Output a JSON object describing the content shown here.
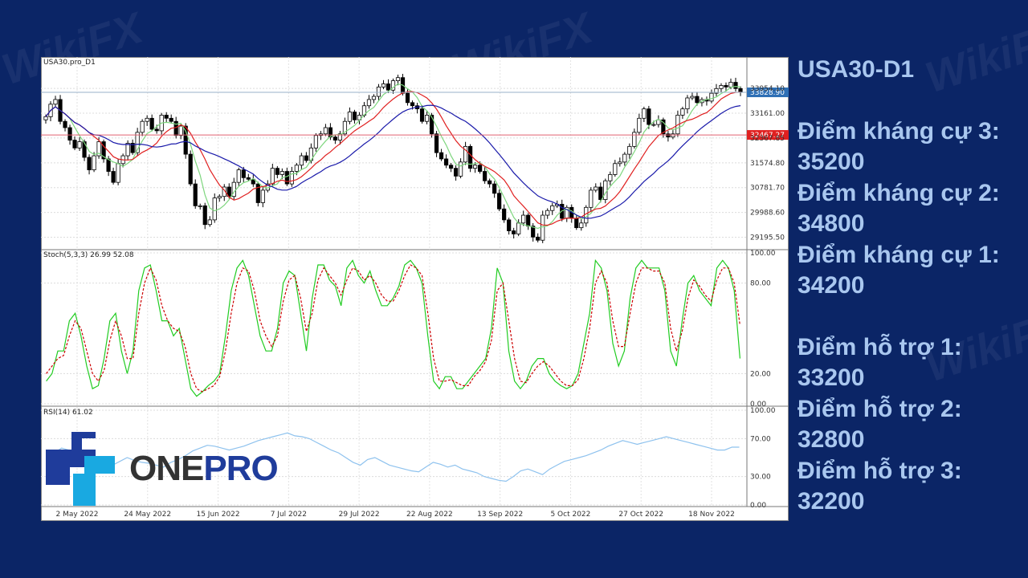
{
  "chart_data": [
    {
      "type": "candlestick",
      "title": "USA30.pro_D1",
      "x_tick_labels": [
        "2 May 2022",
        "24 May 2022",
        "15 Jun 2022",
        "7 Jul 2022",
        "29 Jul 2022",
        "22 Aug 2022",
        "13 Sep 2022",
        "5 Oct 2022",
        "27 Oct 2022",
        "18 Nov 2022"
      ],
      "y_tick_labels": [
        "33954.10",
        "33161.00",
        "32367.85",
        "31574.80",
        "30781.70",
        "29988.60",
        "29195.50"
      ],
      "ylim": [
        28900,
        34600
      ],
      "last_price": "33828.90",
      "horizontal_line": "32467.27",
      "colors": {
        "fast_ma": "#7ed67e",
        "mid_ma": "#e02020",
        "slow_ma": "#1a1aaa",
        "up_candle": "#ffffff",
        "down_candle": "#000000"
      },
      "close": [
        33050,
        33450,
        33600,
        32900,
        32700,
        32300,
        32050,
        32250,
        31750,
        31350,
        31800,
        32250,
        31700,
        31300,
        30950,
        31550,
        31800,
        32200,
        31900,
        32550,
        32900,
        33000,
        32650,
        32600,
        33100,
        33000,
        32900,
        32450,
        32750,
        31850,
        30900,
        30200,
        30200,
        29600,
        29750,
        30450,
        30500,
        30800,
        30500,
        30950,
        31350,
        31100,
        31050,
        30900,
        30300,
        30700,
        30900,
        31400,
        31200,
        31300,
        30900,
        31300,
        31500,
        31800,
        31650,
        32050,
        32450,
        32500,
        32700,
        32400,
        32300,
        32500,
        32900,
        33200,
        32950,
        33100,
        33400,
        33600,
        33700,
        34000,
        34100,
        33900,
        34200,
        34300,
        33800,
        33500,
        33400,
        33300,
        32900,
        33100,
        32500,
        31900,
        31700,
        31500,
        31400,
        31150,
        31600,
        32100,
        31400,
        31500,
        31300,
        31000,
        30900,
        30600,
        30100,
        29750,
        29400,
        29300,
        29650,
        29900,
        29550,
        29200,
        29100,
        29900,
        30050,
        30200,
        30250,
        29800,
        30150,
        29800,
        29500,
        29650,
        30150,
        30700,
        30800,
        30400,
        31000,
        31200,
        31550,
        31600,
        31850,
        32100,
        32550,
        33000,
        33300,
        32800,
        32800,
        32950,
        32500,
        32400,
        32500,
        33100,
        33300,
        33650,
        33700,
        33500,
        33600,
        33550,
        33800,
        33950,
        34050,
        34000,
        34150,
        33950,
        33828.9
      ]
    },
    {
      "type": "line",
      "title": "Stoch(5,3,3) 26.99 52.08",
      "y_tick_labels": [
        "100.00",
        "80.00",
        "20.00",
        "0.00"
      ],
      "ylim": [
        0,
        100
      ],
      "series": [
        {
          "color": "#22cc22",
          "values": [
            15,
            20,
            35,
            35,
            55,
            60,
            45,
            25,
            10,
            12,
            30,
            55,
            60,
            35,
            20,
            35,
            75,
            90,
            92,
            75,
            55,
            55,
            45,
            50,
            30,
            10,
            5,
            8,
            12,
            15,
            20,
            45,
            75,
            90,
            95,
            85,
            65,
            45,
            35,
            35,
            50,
            80,
            88,
            85,
            60,
            35,
            70,
            92,
            92,
            82,
            78,
            65,
            90,
            95,
            85,
            80,
            88,
            75,
            65,
            65,
            70,
            78,
            92,
            95,
            90,
            80,
            45,
            15,
            10,
            18,
            18,
            10,
            10,
            15,
            20,
            25,
            30,
            50,
            90,
            80,
            35,
            15,
            10,
            15,
            25,
            30,
            30,
            20,
            15,
            12,
            10,
            12,
            20,
            40,
            60,
            95,
            90,
            75,
            40,
            25,
            35,
            70,
            90,
            95,
            90,
            90,
            90,
            75,
            35,
            25,
            55,
            80,
            85,
            75,
            70,
            65,
            90,
            95,
            90,
            75,
            30
          ]
        },
        {
          "color": "#cc0000",
          "values": [
            20,
            25,
            30,
            32,
            45,
            55,
            50,
            35,
            20,
            15,
            22,
            42,
            55,
            45,
            30,
            30,
            60,
            80,
            90,
            82,
            65,
            55,
            50,
            48,
            38,
            20,
            10,
            8,
            10,
            12,
            18,
            35,
            60,
            80,
            90,
            88,
            75,
            55,
            45,
            38,
            45,
            68,
            82,
            85,
            70,
            48,
            60,
            82,
            90,
            85,
            80,
            72,
            82,
            90,
            88,
            82,
            85,
            80,
            72,
            68,
            68,
            75,
            85,
            92,
            90,
            85,
            60,
            30,
            15,
            15,
            16,
            14,
            12,
            12,
            18,
            22,
            28,
            42,
            75,
            80,
            55,
            30,
            15,
            14,
            20,
            25,
            28,
            25,
            20,
            15,
            12,
            12,
            16,
            30,
            50,
            80,
            88,
            80,
            55,
            38,
            38,
            60,
            80,
            90,
            90,
            88,
            88,
            80,
            50,
            35,
            48,
            70,
            82,
            78,
            72,
            68,
            82,
            90,
            90,
            80,
            52
          ]
        }
      ]
    },
    {
      "type": "line",
      "title": "RSI(14) 61.02",
      "y_tick_labels": [
        "100.00",
        "70.00",
        "30.00",
        "0.00"
      ],
      "ylim": [
        0,
        100
      ],
      "series": [
        {
          "color": "#8ec2ee",
          "values": [
            52,
            55,
            60,
            58,
            50,
            45,
            48,
            44,
            40,
            42,
            46,
            50,
            47,
            45,
            44,
            42,
            40,
            45,
            48,
            52,
            57,
            60,
            63,
            62,
            60,
            58,
            60,
            62,
            65,
            68,
            70,
            72,
            74,
            76,
            73,
            72,
            70,
            66,
            62,
            58,
            55,
            50,
            45,
            42,
            48,
            50,
            46,
            42,
            40,
            38,
            36,
            35,
            40,
            45,
            43,
            40,
            42,
            38,
            36,
            34,
            30,
            28,
            26,
            25,
            30,
            36,
            38,
            35,
            32,
            38,
            42,
            46,
            48,
            50,
            52,
            55,
            58,
            62,
            65,
            68,
            66,
            64,
            66,
            68,
            70,
            72,
            70,
            68,
            66,
            64,
            62,
            60,
            58,
            58,
            61,
            61
          ]
        }
      ]
    }
  ],
  "side": {
    "heading": "USA30-D1",
    "resistances": [
      {
        "label": "Điểm kháng cự 3:",
        "value": "35200"
      },
      {
        "label": "Điểm kháng cự 2:",
        "value": "34800"
      },
      {
        "label": "Điểm kháng cự 1:",
        "value": "34200"
      }
    ],
    "supports": [
      {
        "label": "Điểm hỗ trợ 1:",
        "value": "33200"
      },
      {
        "label": "Điểm hỗ trợ 2:",
        "value": "32800"
      },
      {
        "label": "Điểm hỗ trợ 3:",
        "value": "32200"
      }
    ]
  },
  "logo": {
    "part1": "ONE",
    "part2": "PRO"
  },
  "watermark": "WikiFX"
}
